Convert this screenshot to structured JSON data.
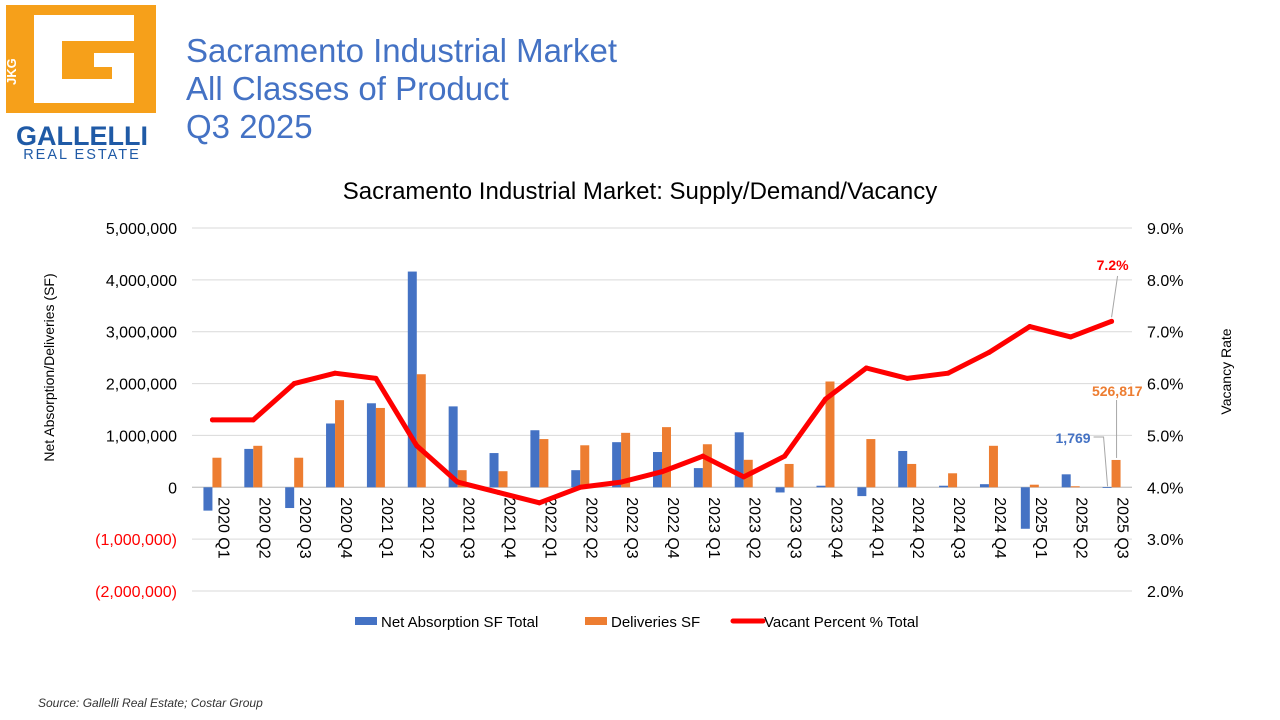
{
  "logo": {
    "initials": "JKG",
    "name": "GALLELLI",
    "subtitle": "REAL ESTATE",
    "colors": {
      "orange": "#f6a01a",
      "blue": "#1f5aa6"
    }
  },
  "header": {
    "line1": "Sacramento Industrial Market",
    "line2": "All Classes of Product",
    "line3": "Q3 2025"
  },
  "source": "Source: Gallelli Real Estate; Costar Group",
  "chart_data": {
    "type": "bar",
    "title": "Sacramento Industrial Market: Supply/Demand/Vacancy",
    "ylabel": "Net Absorption/Deliveries (SF)",
    "y2label": "Vacancy Rate",
    "ylim": [
      -2000000,
      5000000
    ],
    "y2lim": [
      2.0,
      9.0
    ],
    "yticks": [
      "5,000,000",
      "4,000,000",
      "3,000,000",
      "2,000,000",
      "1,000,000",
      "0",
      "(1,000,000)",
      "(2,000,000)"
    ],
    "y2ticks": [
      "9.0%",
      "8.0%",
      "7.0%",
      "6.0%",
      "5.0%",
      "4.0%",
      "3.0%",
      "2.0%"
    ],
    "categories": [
      "2020 Q1",
      "2020 Q2",
      "2020 Q3",
      "2020 Q4",
      "2021 Q1",
      "2021 Q2",
      "2021 Q3",
      "2021 Q4",
      "2022 Q1",
      "2022 Q2",
      "2022 Q3",
      "2022 Q4",
      "2023 Q1",
      "2023 Q2",
      "2023 Q3",
      "2023 Q4",
      "2024 Q1",
      "2024 Q2",
      "2024 Q3",
      "2024 Q4",
      "2025 Q1",
      "2025 Q2",
      "2025 Q3"
    ],
    "series": [
      {
        "name": "Net Absorption SF Total",
        "type": "bar",
        "axis": "left",
        "color": "#4472c4",
        "values": [
          -450000,
          740000,
          -400000,
          1230000,
          1620000,
          4160000,
          1560000,
          660000,
          1100000,
          330000,
          870000,
          680000,
          370000,
          1060000,
          -100000,
          30000,
          -170000,
          700000,
          30000,
          60000,
          -800000,
          250000,
          1769
        ]
      },
      {
        "name": "Deliveries SF",
        "type": "bar",
        "axis": "left",
        "color": "#ed7d31",
        "values": [
          570000,
          800000,
          570000,
          1680000,
          1530000,
          2180000,
          330000,
          310000,
          930000,
          810000,
          1050000,
          1160000,
          830000,
          530000,
          450000,
          2040000,
          930000,
          450000,
          270000,
          800000,
          50000,
          20000,
          526817
        ]
      },
      {
        "name": "Vacant Percent % Total",
        "type": "line",
        "axis": "right",
        "color": "#ff0000",
        "values": [
          5.3,
          5.3,
          6.0,
          6.2,
          6.1,
          4.8,
          4.1,
          3.9,
          3.7,
          4.0,
          4.1,
          4.3,
          4.6,
          4.2,
          4.6,
          5.7,
          6.3,
          6.1,
          6.2,
          6.6,
          7.1,
          6.9,
          7.2
        ]
      }
    ],
    "annotations": [
      {
        "text": "7.2%",
        "series": "Vacant Percent % Total",
        "index": 22,
        "color": "#ff0000"
      },
      {
        "text": "526,817",
        "series": "Deliveries SF",
        "index": 22,
        "color": "#ed7d31"
      },
      {
        "text": "1,769",
        "series": "Net Absorption SF Total",
        "index": 22,
        "color": "#4472c4"
      }
    ],
    "negative_tick_color": "#ff0000",
    "legend": "bottom"
  }
}
